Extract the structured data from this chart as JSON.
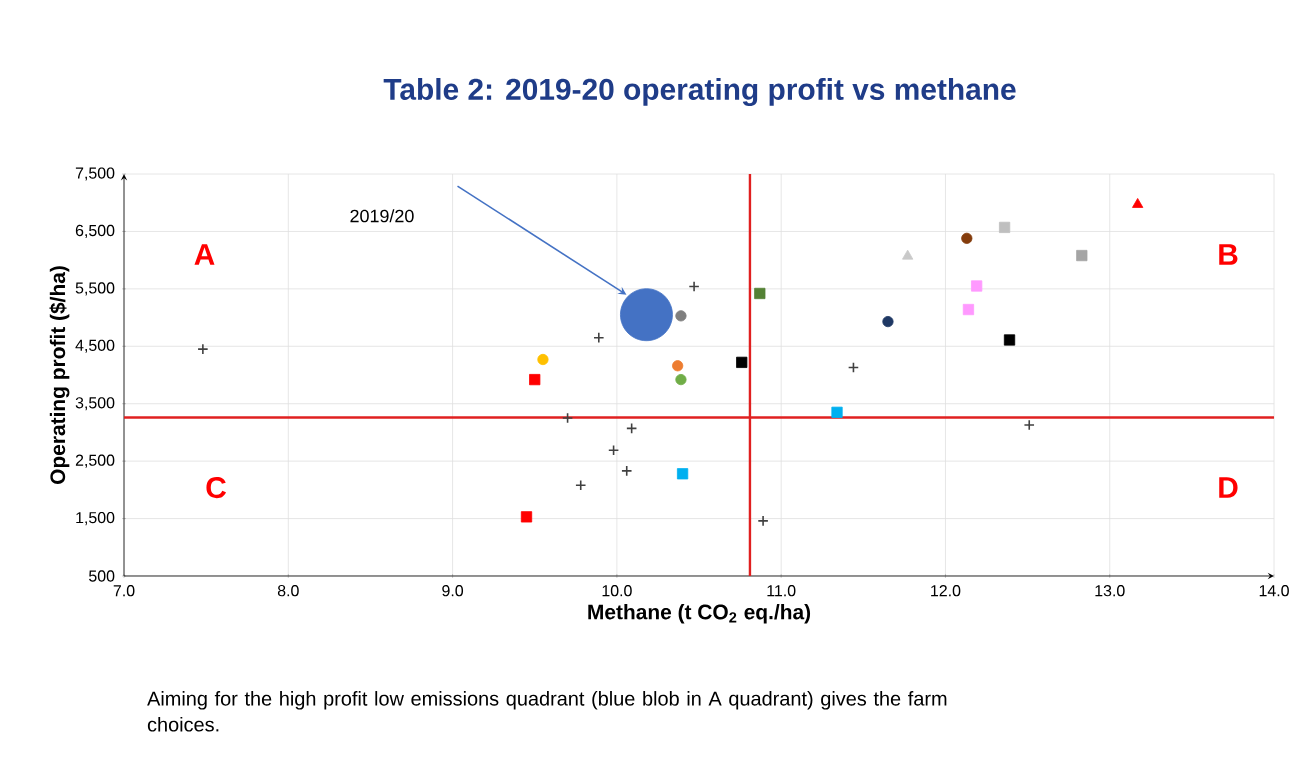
{
  "chart_data": {
    "type": "scatter",
    "title": "Table 2: 2019-20 operating profit vs methane",
    "xlabel": "Methane (t CO$_{2}$ eq./ha)",
    "ylabel": "Operating profit ($/ha)",
    "xlim": [
      7,
      14
    ],
    "ylim": [
      500,
      7500
    ],
    "xticks": [
      {
        "value": 7,
        "label": "7.0"
      },
      {
        "value": 8,
        "label": "8.0"
      },
      {
        "value": 9,
        "label": "9.0"
      },
      {
        "value": 10,
        "label": "10.0"
      },
      {
        "value": 11,
        "label": "11.0"
      },
      {
        "value": 12,
        "label": "12.0"
      },
      {
        "value": 13,
        "label": "13.0"
      },
      {
        "value": 14,
        "label": "14.0"
      }
    ],
    "yticks": [
      {
        "value": 500,
        "label": "500"
      },
      {
        "value": 1500,
        "label": "1,500"
      },
      {
        "value": 2500,
        "label": "2,500"
      },
      {
        "value": 3500,
        "label": "3,500"
      },
      {
        "value": 4500,
        "label": "4,500"
      },
      {
        "value": 5500,
        "label": "5,500"
      },
      {
        "value": 6500,
        "label": "6,500"
      },
      {
        "value": 7500,
        "label": "7,500"
      }
    ],
    "grid": true,
    "series": [
      {
        "type": "bubble",
        "color": "#4472c4",
        "marker": "circle",
        "x": [
          10.18
        ],
        "values": [
          5050
        ],
        "sizes": [
          1
        ]
      },
      {
        "color": "#404040",
        "marker": "cross",
        "x": [
          7.48,
          9.89,
          9.7,
          10.09,
          9.98,
          10.06,
          9.78,
          10.47,
          11.44,
          12.51,
          10.89
        ],
        "values": [
          4450,
          4650,
          3250,
          3070,
          2690,
          2330,
          2080,
          5540,
          4130,
          3130,
          1460
        ]
      },
      {
        "color": "#ffc000",
        "marker": "circle",
        "x": [
          9.55
        ],
        "values": [
          4270
        ]
      },
      {
        "color": "#ff0000",
        "marker": "square",
        "x": [
          9.5,
          9.45
        ],
        "values": [
          3920,
          1530
        ]
      },
      {
        "color": "#ff0000",
        "marker": "triangle",
        "x": [
          13.17
        ],
        "values": [
          6970
        ]
      },
      {
        "color": "#bfbfbf",
        "marker": "square",
        "x": [
          12.36
        ],
        "values": [
          6570
        ]
      },
      {
        "color": "#843c0c",
        "marker": "circle",
        "x": [
          12.13
        ],
        "values": [
          6380
        ]
      },
      {
        "color": "#c9c9c9",
        "marker": "triangle",
        "x": [
          11.77
        ],
        "values": [
          6070
        ]
      },
      {
        "color": "#a5a5a5",
        "marker": "square",
        "x": [
          12.83
        ],
        "values": [
          6080
        ]
      },
      {
        "color": "#548235",
        "marker": "square",
        "x": [
          10.87
        ],
        "values": [
          5420
        ]
      },
      {
        "color": "#ff99ff",
        "marker": "square",
        "x": [
          12.19,
          12.14
        ],
        "values": [
          5550,
          5140
        ]
      },
      {
        "color": "#7f7f7f",
        "marker": "circle",
        "x": [
          10.39
        ],
        "values": [
          5030
        ]
      },
      {
        "color": "#1f3864",
        "marker": "circle",
        "x": [
          11.65
        ],
        "values": [
          4930
        ]
      },
      {
        "color": "#000000",
        "marker": "square",
        "x": [
          12.39,
          10.76
        ],
        "values": [
          4610,
          4220
        ]
      },
      {
        "color": "#ed7d31",
        "marker": "circle",
        "x": [
          10.37
        ],
        "values": [
          4160
        ]
      },
      {
        "color": "#70ad47",
        "marker": "circle",
        "x": [
          10.39
        ],
        "values": [
          3920
        ]
      },
      {
        "color": "#00b0f0",
        "marker": "square",
        "x": [
          11.34,
          10.4
        ],
        "values": [
          3350,
          2280
        ]
      }
    ],
    "ref_lines": [
      {
        "axis": "x",
        "value": 10.81,
        "color": "#e02020"
      },
      {
        "axis": "y",
        "value": 3260,
        "color": "#e02020"
      }
    ],
    "annotations": [
      "2019/20",
      "A",
      "B",
      "C",
      "D",
      "Aiming for the high profit low emissions quadrant (blue blob in A quadrant) gives the farm choices."
    ]
  }
}
